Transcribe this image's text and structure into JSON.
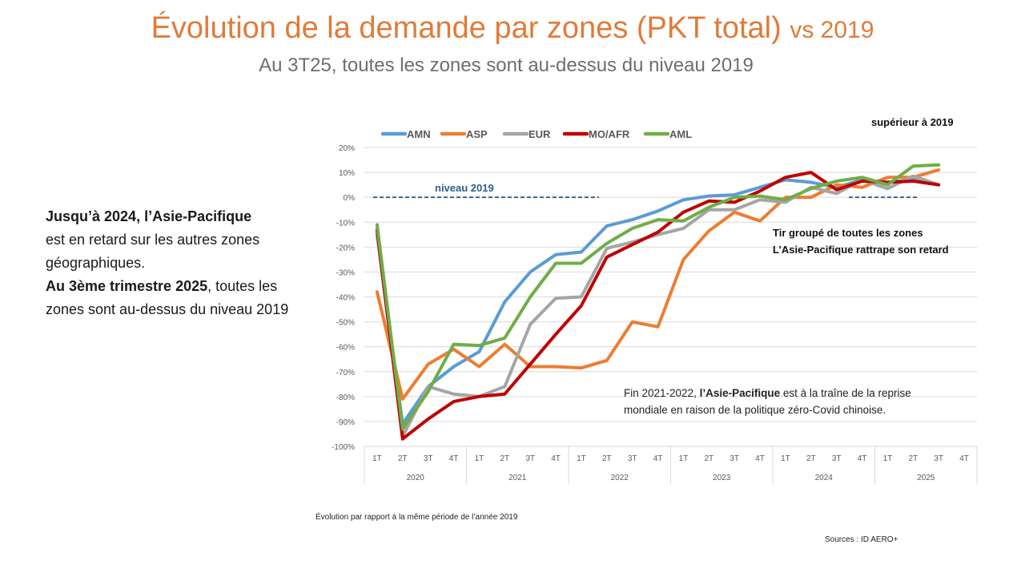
{
  "header": {
    "title": "Évolution de la demande par zones (PKT total)",
    "title_suffix": "vs 2019",
    "subtitle": "Au 3T25, toutes les zones sont au-dessus du niveau 2019"
  },
  "sidebar_text": {
    "p1_bold": "Jusqu’à 2024, l’Asie-Pacifique",
    "p1_rest": "est  en retard sur les autres zones géographiques.",
    "p2_bold": "Au 3ème trimestre 2025",
    "p2_rest": ", toutes les zones sont au-dessus du niveau 2019"
  },
  "annotations": {
    "superieur": "supérieur à 2019",
    "niveau": "niveau 2019",
    "tir_line1": "Tir groupé de toutes les zones",
    "tir_line2": "L’Asie-Pacifique rattrape son retard",
    "fin_prefix": "Fin 2021-2022, ",
    "fin_bold": "l’Asie-Pacifique",
    "fin_rest1": " est à la traîne de la reprise",
    "fin_line2": "mondiale en raison de la politique zéro-Covid chinoise."
  },
  "footer": {
    "footnote": "Évolution par rapport à la même période de l’année 2019",
    "source": "Sources : ID AERO+"
  },
  "colors": {
    "title": "#e07b39",
    "reference_line": "#2e5f8a"
  },
  "chart_data": {
    "type": "line",
    "title": "",
    "xlabel": "",
    "ylabel": "",
    "ylim": [
      -100,
      20
    ],
    "yticks": [
      20,
      10,
      0,
      -10,
      -20,
      -30,
      -40,
      -50,
      -60,
      -70,
      -80,
      -90,
      -100
    ],
    "ytick_labels": [
      "20%",
      "10%",
      "0%",
      "-10%",
      "-20%",
      "-30%",
      "-40%",
      "-50%",
      "-60%",
      "-70%",
      "-80%",
      "-90%",
      "-100%"
    ],
    "grid": true,
    "legend_position": "top",
    "years": [
      "2020",
      "2021",
      "2022",
      "2023",
      "2024",
      "2025"
    ],
    "quarters": [
      "1T",
      "2T",
      "3T",
      "4T"
    ],
    "reference_line": {
      "value": 0,
      "label": "niveau 2019"
    },
    "series": [
      {
        "name": "AMN",
        "color": "#5b9bd5",
        "values": [
          -15,
          -91,
          -76,
          -68,
          -62,
          -42,
          -30,
          -23,
          -22,
          -11.5,
          -9,
          -5.5,
          -1,
          0.5,
          1,
          4,
          7,
          6,
          4,
          7,
          6,
          7,
          5
        ]
      },
      {
        "name": "ASP",
        "color": "#ed7d31",
        "values": [
          -38,
          -81,
          -67,
          -61,
          -68,
          -59,
          -68,
          -68,
          -68.5,
          -65.5,
          -50,
          -52,
          -25,
          -13.5,
          -6,
          -9.5,
          0,
          0,
          5,
          4,
          8,
          8,
          11
        ]
      },
      {
        "name": "EUR",
        "color": "#a5a5a5",
        "values": [
          -15,
          -96,
          -76,
          -79,
          -80,
          -76,
          -51,
          -40.5,
          -40,
          -20.5,
          -18,
          -15,
          -12.5,
          -5,
          -5,
          -1,
          -2,
          4,
          1.5,
          7,
          3.5,
          8.5,
          5
        ]
      },
      {
        "name": "MO/AFR",
        "color": "#c00000",
        "values": [
          -13,
          -97,
          -89,
          -82,
          -80,
          -79,
          -67,
          -55,
          -43.5,
          -24,
          -19,
          -14,
          -6,
          -1.5,
          -2,
          2.5,
          8,
          10,
          3,
          6.5,
          6,
          6.5,
          5
        ]
      },
      {
        "name": "AML",
        "color": "#70ad47",
        "values": [
          -11,
          -93,
          -78,
          -59,
          -59.5,
          -56.5,
          -40,
          -26.5,
          -26.5,
          -18.5,
          -12.5,
          -9,
          -9.5,
          -4,
          0,
          0.5,
          -1,
          3.5,
          6.5,
          8,
          5,
          12.5,
          13
        ]
      }
    ]
  }
}
